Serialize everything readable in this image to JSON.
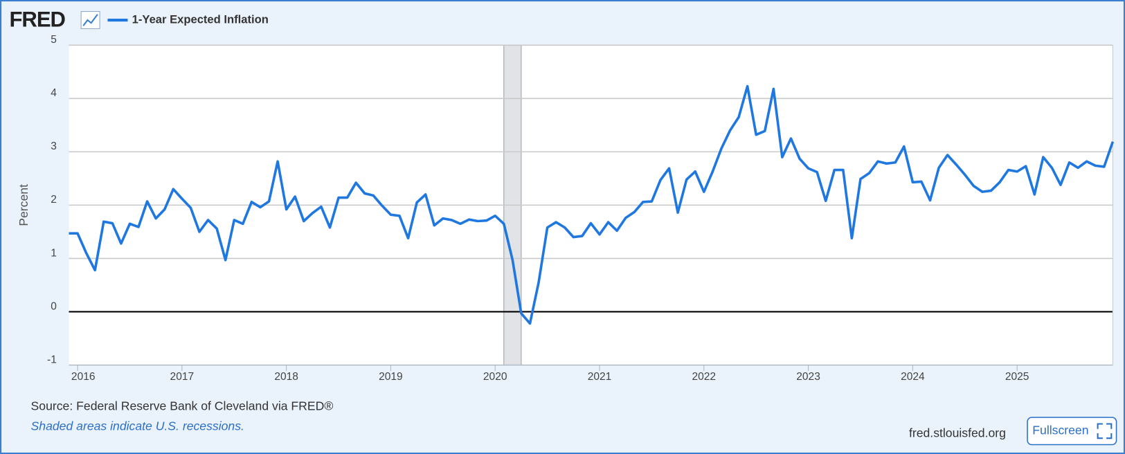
{
  "header": {
    "logo": "FRED"
  },
  "chart_data": {
    "type": "line",
    "ylabel": "Percent",
    "x": [
      "2015-12",
      "2016-01",
      "2016-02",
      "2016-03",
      "2016-04",
      "2016-05",
      "2016-06",
      "2016-07",
      "2016-08",
      "2016-09",
      "2016-10",
      "2016-11",
      "2016-12",
      "2017-01",
      "2017-02",
      "2017-03",
      "2017-04",
      "2017-05",
      "2017-06",
      "2017-07",
      "2017-08",
      "2017-09",
      "2017-10",
      "2017-11",
      "2017-12",
      "2018-01",
      "2018-02",
      "2018-03",
      "2018-04",
      "2018-05",
      "2018-06",
      "2018-07",
      "2018-08",
      "2018-09",
      "2018-10",
      "2018-11",
      "2018-12",
      "2019-01",
      "2019-02",
      "2019-03",
      "2019-04",
      "2019-05",
      "2019-06",
      "2019-07",
      "2019-08",
      "2019-09",
      "2019-10",
      "2019-11",
      "2019-12",
      "2020-01",
      "2020-02",
      "2020-03",
      "2020-04",
      "2020-05",
      "2020-06",
      "2020-07",
      "2020-08",
      "2020-09",
      "2020-10",
      "2020-11",
      "2020-12",
      "2021-01",
      "2021-02",
      "2021-03",
      "2021-04",
      "2021-05",
      "2021-06",
      "2021-07",
      "2021-08",
      "2021-09",
      "2021-10",
      "2021-11",
      "2021-12",
      "2022-01",
      "2022-02",
      "2022-03",
      "2022-04",
      "2022-05",
      "2022-06",
      "2022-07",
      "2022-08",
      "2022-09",
      "2022-10",
      "2022-11",
      "2022-12",
      "2023-01",
      "2023-02",
      "2023-03",
      "2023-04",
      "2023-05",
      "2023-06",
      "2023-07",
      "2023-08",
      "2023-09",
      "2023-10",
      "2023-11",
      "2023-12",
      "2024-01",
      "2024-02",
      "2024-03",
      "2024-04",
      "2024-05",
      "2024-06",
      "2024-07",
      "2024-08",
      "2024-09",
      "2024-10",
      "2024-11",
      "2024-12",
      "2025-01",
      "2025-02",
      "2025-03",
      "2025-04",
      "2025-05",
      "2025-06",
      "2025-07",
      "2025-08",
      "2025-09",
      "2025-10",
      "2025-11",
      "2025-12"
    ],
    "series": [
      {
        "name": "1-Year Expected Inflation",
        "color": "#1f77e0",
        "values": [
          1.47,
          1.47,
          1.1,
          0.78,
          1.69,
          1.66,
          1.28,
          1.65,
          1.59,
          2.07,
          1.75,
          1.92,
          2.3,
          2.12,
          1.95,
          1.5,
          1.72,
          1.56,
          0.97,
          1.72,
          1.65,
          2.06,
          1.96,
          2.07,
          2.82,
          1.92,
          2.16,
          1.7,
          1.85,
          1.97,
          1.58,
          2.14,
          2.14,
          2.42,
          2.22,
          2.18,
          1.99,
          1.82,
          1.8,
          1.38,
          2.05,
          2.2,
          1.62,
          1.75,
          1.72,
          1.65,
          1.73,
          1.7,
          1.71,
          1.8,
          1.65,
          0.97,
          -0.03,
          -0.22,
          0.55,
          1.58,
          1.68,
          1.58,
          1.4,
          1.42,
          1.66,
          1.45,
          1.68,
          1.52,
          1.76,
          1.87,
          2.06,
          2.07,
          2.47,
          2.69,
          1.86,
          2.48,
          2.63,
          2.25,
          2.63,
          3.06,
          3.4,
          3.65,
          4.23,
          3.32,
          3.39,
          4.18,
          2.9,
          3.25,
          2.87,
          2.69,
          2.62,
          2.08,
          2.66,
          2.66,
          1.38,
          2.49,
          2.6,
          2.82,
          2.78,
          2.8,
          3.1,
          2.43,
          2.44,
          2.09,
          2.7,
          2.94,
          2.76,
          2.57,
          2.36,
          2.25,
          2.27,
          2.43,
          2.66,
          2.63,
          2.73,
          2.2,
          2.9,
          2.7,
          2.38,
          2.8,
          2.7,
          2.82,
          2.74,
          2.72,
          3.19
        ]
      }
    ],
    "xlim": [
      "2015-12",
      "2025-12"
    ],
    "xticks": [
      {
        "value": "2016-01",
        "label": "2016"
      },
      {
        "value": "2017-01",
        "label": "2017"
      },
      {
        "value": "2018-01",
        "label": "2018"
      },
      {
        "value": "2019-01",
        "label": "2019"
      },
      {
        "value": "2020-01",
        "label": "2020"
      },
      {
        "value": "2021-01",
        "label": "2021"
      },
      {
        "value": "2022-01",
        "label": "2022"
      },
      {
        "value": "2023-01",
        "label": "2023"
      },
      {
        "value": "2024-01",
        "label": "2024"
      },
      {
        "value": "2025-01",
        "label": "2025"
      }
    ],
    "ylim": [
      -1,
      5
    ],
    "yticks": [
      -1,
      0,
      1,
      2,
      3,
      4,
      5
    ],
    "grid": true,
    "recessions": [
      {
        "start": "2020-02",
        "end": "2020-04"
      }
    ]
  },
  "footer": {
    "source": "Source: Federal Reserve Bank of Cleveland via FRED®",
    "note": "Shaded areas indicate U.S. recessions.",
    "site": "fred.stlouisfed.org",
    "button": "Fullscreen"
  }
}
